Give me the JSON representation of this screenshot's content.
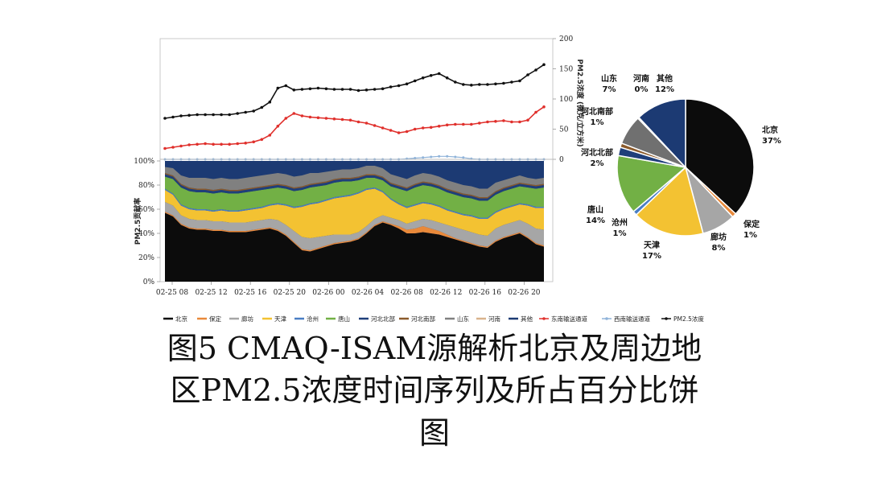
{
  "chart_data": [
    {
      "type": "line",
      "ylabel": "PM2.5浓度 (微克/立方米)",
      "ylim": [
        0,
        200
      ],
      "yticks": [
        "0",
        "50",
        "100",
        "150",
        "200"
      ],
      "xticks": [
        "02-25 08",
        "02-25 12",
        "02-25 16",
        "02-25 20",
        "02-26 00",
        "02-26 04",
        "02-26 08",
        "02-26 12",
        "02-26 16",
        "02-26 20"
      ],
      "series": [
        {
          "name": "PM2.5浓度",
          "color": "#111111",
          "values": [
            68,
            70,
            72,
            73,
            74,
            74,
            74,
            74,
            74,
            76,
            78,
            80,
            86,
            95,
            118,
            122,
            115,
            116,
            117,
            118,
            117,
            116,
            116,
            116,
            114,
            115,
            116,
            117,
            120,
            122,
            125,
            130,
            135,
            139,
            142,
            135,
            128,
            124,
            123,
            124,
            124,
            125,
            126,
            128,
            130,
            140,
            148,
            157
          ]
        },
        {
          "name": "东南输送通道",
          "color": "#e0302c",
          "values": [
            18,
            20,
            22,
            24,
            25,
            26,
            25,
            25,
            25,
            26,
            27,
            29,
            33,
            40,
            55,
            68,
            76,
            72,
            70,
            69,
            68,
            67,
            66,
            65,
            62,
            60,
            56,
            52,
            48,
            44,
            46,
            50,
            52,
            53,
            55,
            57,
            58,
            58,
            58,
            60,
            62,
            63,
            64,
            62,
            62,
            65,
            78,
            87
          ]
        },
        {
          "name": "西南输送通道",
          "color": "#8fb3d9",
          "values": [
            0,
            0,
            0,
            0,
            0,
            0,
            0,
            0,
            0,
            0,
            0,
            0,
            0,
            0,
            0,
            0,
            0,
            0,
            0,
            0,
            0,
            0,
            0,
            0,
            0,
            0,
            0,
            0,
            0,
            0,
            1,
            2,
            3,
            4,
            5,
            5,
            4,
            3,
            1,
            0,
            0,
            0,
            0,
            0,
            0,
            0,
            0,
            0
          ]
        }
      ]
    },
    {
      "type": "area",
      "ylabel": "PM2.5贡献率",
      "ylim": [
        0,
        100
      ],
      "yticks": [
        "0%",
        "20%",
        "40%",
        "60%",
        "80%",
        "100%"
      ],
      "series": [
        {
          "name": "北京",
          "color": "#0c0c0c",
          "values": [
            57,
            54,
            47,
            44,
            43,
            43,
            42,
            42,
            41,
            41,
            41,
            42,
            43,
            44,
            42,
            38,
            32,
            26,
            25,
            27,
            29,
            31,
            32,
            33,
            35,
            40,
            46,
            49,
            47,
            44,
            40,
            40,
            41,
            40,
            39,
            37,
            35,
            33,
            31,
            29,
            28,
            33,
            36,
            38,
            40,
            36,
            31,
            29
          ]
        },
        {
          "name": "保定",
          "color": "#e9893a",
          "values": [
            1,
            1,
            1,
            1,
            1,
            1,
            1,
            1,
            1,
            1,
            1,
            1,
            1,
            1,
            1,
            1,
            1,
            1,
            1,
            1,
            1,
            1,
            1,
            1,
            1,
            1,
            1,
            1,
            1,
            2,
            3,
            4,
            5,
            4,
            3,
            2,
            1,
            1,
            1,
            1,
            1,
            1,
            1,
            1,
            1,
            1,
            1,
            1
          ]
        },
        {
          "name": "廊坊",
          "color": "#a6a6a6",
          "values": [
            8,
            8,
            7,
            7,
            7,
            7,
            7,
            7,
            7,
            7,
            7,
            7,
            7,
            7,
            8,
            8,
            9,
            10,
            10,
            9,
            8,
            7,
            6,
            5,
            5,
            5,
            5,
            5,
            5,
            5,
            5,
            6,
            6,
            7,
            7,
            8,
            9,
            9,
            9,
            9,
            9,
            10,
            10,
            10,
            10,
            11,
            12,
            13
          ]
        },
        {
          "name": "天津",
          "color": "#f3c232",
          "values": [
            10,
            9,
            8,
            8,
            8,
            8,
            8,
            9,
            9,
            9,
            10,
            10,
            10,
            11,
            13,
            16,
            19,
            25,
            28,
            28,
            29,
            30,
            31,
            32,
            32,
            30,
            25,
            19,
            15,
            13,
            13,
            13,
            13,
            13,
            13,
            12,
            12,
            12,
            13,
            13,
            14,
            13,
            13,
            13,
            13,
            15,
            17,
            18
          ]
        },
        {
          "name": "沧州",
          "color": "#4a7ec4",
          "values": [
            1,
            1,
            1,
            1,
            1,
            1,
            1,
            1,
            1,
            1,
            1,
            1,
            1,
            1,
            1,
            1,
            1,
            1,
            1,
            1,
            1,
            1,
            1,
            1,
            1,
            1,
            1,
            1,
            1,
            1,
            1,
            1,
            1,
            1,
            1,
            1,
            1,
            1,
            1,
            1,
            1,
            1,
            1,
            1,
            1,
            1,
            1,
            1
          ]
        },
        {
          "name": "唐山",
          "color": "#72b045",
          "values": [
            10,
            12,
            14,
            14,
            14,
            14,
            14,
            14,
            14,
            14,
            14,
            14,
            14,
            13,
            13,
            13,
            13,
            13,
            13,
            13,
            12,
            12,
            12,
            11,
            10,
            9,
            8,
            9,
            10,
            12,
            13,
            14,
            14,
            14,
            14,
            14,
            14,
            14,
            14,
            14,
            14,
            14,
            14,
            14,
            14,
            14,
            15,
            16
          ]
        },
        {
          "name": "河北北部",
          "color": "#1f3f7a",
          "values": [
            2,
            2,
            2,
            2,
            2,
            2,
            2,
            2,
            2,
            2,
            2,
            2,
            2,
            2,
            2,
            2,
            2,
            2,
            2,
            2,
            2,
            2,
            2,
            2,
            2,
            2,
            2,
            2,
            2,
            2,
            2,
            2,
            2,
            2,
            2,
            2,
            2,
            2,
            2,
            2,
            2,
            2,
            2,
            2,
            2,
            2,
            2,
            2
          ]
        },
        {
          "name": "河北南部",
          "color": "#8b5a2b",
          "values": [
            1,
            1,
            1,
            1,
            1,
            1,
            1,
            1,
            1,
            1,
            1,
            1,
            1,
            1,
            1,
            1,
            1,
            1,
            1,
            1,
            1,
            1,
            1,
            1,
            1,
            1,
            1,
            1,
            1,
            1,
            1,
            1,
            1,
            1,
            1,
            1,
            1,
            1,
            1,
            1,
            1,
            1,
            1,
            1,
            1,
            1,
            1,
            1
          ]
        },
        {
          "name": "山东",
          "color": "#808080",
          "values": [
            5,
            6,
            7,
            8,
            9,
            9,
            9,
            9,
            9,
            9,
            9,
            9,
            9,
            9,
            9,
            9,
            9,
            9,
            9,
            8,
            8,
            7,
            7,
            7,
            7,
            7,
            7,
            7,
            7,
            7,
            7,
            7,
            7,
            7,
            7,
            7,
            7,
            7,
            7,
            7,
            7,
            7,
            6,
            6,
            6,
            5,
            5,
            5
          ]
        },
        {
          "name": "河南",
          "color": "#d9b38c",
          "values": [
            0,
            0,
            0,
            0,
            0,
            0,
            0,
            0,
            0,
            0,
            0,
            0,
            0,
            0,
            0,
            0,
            0,
            0,
            0,
            0,
            0,
            0,
            0,
            0,
            0,
            0,
            0,
            0,
            0,
            0,
            0,
            0,
            0,
            0,
            0,
            0,
            0,
            0,
            0,
            0,
            0,
            0,
            0,
            0,
            0,
            0,
            0,
            0
          ]
        }
      ],
      "remainder": {
        "name": "其他",
        "color": "#1c3a73"
      }
    },
    {
      "type": "pie",
      "slices": [
        {
          "name": "北京",
          "label": "北京",
          "pct_text": "37%",
          "value": 37,
          "color": "#0c0c0c"
        },
        {
          "name": "保定",
          "label": "保定",
          "pct_text": "1%",
          "value": 1,
          "color": "#e9893a"
        },
        {
          "name": "廊坊",
          "label": "廊坊",
          "pct_text": "8%",
          "value": 8,
          "color": "#a6a6a6"
        },
        {
          "name": "天津",
          "label": "天津",
          "pct_text": "17%",
          "value": 17,
          "color": "#f3c232"
        },
        {
          "name": "沧州",
          "label": "沧州",
          "pct_text": "1%",
          "value": 1,
          "color": "#4a7ec4"
        },
        {
          "name": "唐山",
          "label": "唐山",
          "pct_text": "14%",
          "value": 14,
          "color": "#72b045"
        },
        {
          "name": "河北北部",
          "label": "河北北部",
          "pct_text": "2%",
          "value": 2,
          "color": "#1f3f7a"
        },
        {
          "name": "河北南部",
          "label": "河北南部",
          "pct_text": "1%",
          "value": 1,
          "color": "#8b5a2b"
        },
        {
          "name": "山东",
          "label": "山东",
          "pct_text": "7%",
          "value": 7,
          "color": "#707070"
        },
        {
          "name": "河南",
          "label": "河南",
          "pct_text": "0%",
          "value": 0.3,
          "color": "#d9b38c"
        },
        {
          "name": "其他",
          "label": "其他",
          "pct_text": "12%",
          "value": 12,
          "color": "#1c3a73"
        }
      ]
    }
  ],
  "legend": [
    {
      "name": "北京",
      "color": "#0c0c0c",
      "kind": "line"
    },
    {
      "name": "保定",
      "color": "#e9893a",
      "kind": "line"
    },
    {
      "name": "廊坊",
      "color": "#a6a6a6",
      "kind": "line"
    },
    {
      "name": "天津",
      "color": "#f3c232",
      "kind": "line"
    },
    {
      "name": "沧州",
      "color": "#4a7ec4",
      "kind": "line"
    },
    {
      "name": "唐山",
      "color": "#72b045",
      "kind": "line"
    },
    {
      "name": "河北北部",
      "color": "#1f3f7a",
      "kind": "line"
    },
    {
      "name": "河北南部",
      "color": "#8b5a2b",
      "kind": "line"
    },
    {
      "name": "山东",
      "color": "#808080",
      "kind": "line"
    },
    {
      "name": "河南",
      "color": "#d9b38c",
      "kind": "line"
    },
    {
      "name": "其他",
      "color": "#1c3a73",
      "kind": "line"
    },
    {
      "name": "东南输送通道",
      "color": "#e0302c",
      "kind": "marker"
    },
    {
      "name": "西南输送通道",
      "color": "#8fb3d9",
      "kind": "marker"
    },
    {
      "name": "PM2.5浓度",
      "color": "#111111",
      "kind": "marker"
    }
  ],
  "caption": {
    "line1": "图5  CMAQ-ISAM源解析北京及周边地",
    "line2": "区PM2.5浓度时间序列及所占百分比饼",
    "line3": "图"
  }
}
